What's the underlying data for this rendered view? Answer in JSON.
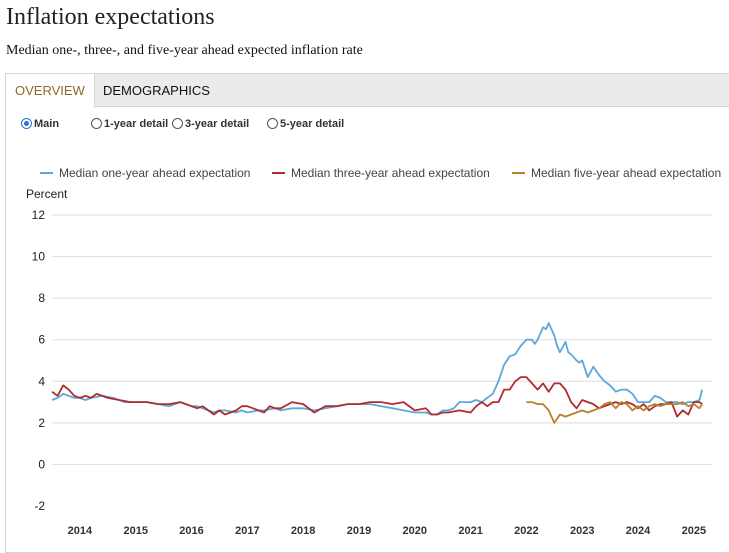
{
  "page": {
    "title": "Inflation expectations",
    "subtitle": "Median one-, three-, and five-year ahead expected inflation rate"
  },
  "tabs": [
    {
      "label": "OVERVIEW",
      "active": true
    },
    {
      "label": "DEMOGRAPHICS",
      "active": false
    }
  ],
  "radios": [
    {
      "label": "Main",
      "checked": true
    },
    {
      "label": "1-year detail",
      "checked": false
    },
    {
      "label": "3-year detail",
      "checked": false
    },
    {
      "label": "5-year detail",
      "checked": false
    }
  ],
  "chart_data": {
    "type": "line",
    "title": "Inflation expectations",
    "subtitle": "Median one-, three-, and five-year ahead expected inflation rate",
    "ylabel": "Percent",
    "xlabel": "",
    "ylim": [
      -2,
      12
    ],
    "xlim": [
      2013.5,
      2025.2
    ],
    "yticks": [
      12,
      10,
      8,
      6,
      4,
      2,
      0,
      -2
    ],
    "xticks": [
      2014,
      2015,
      2016,
      2017,
      2018,
      2019,
      2020,
      2021,
      2022,
      2023,
      2024,
      2025
    ],
    "grid": "horizontal",
    "legend_position": "top",
    "series": [
      {
        "name": "Median one-year ahead expectation",
        "color": "#5aa9dc",
        "x": [
          2013.5,
          2013.6,
          2013.7,
          2013.8,
          2013.9,
          2014.0,
          2014.1,
          2014.2,
          2014.4,
          2014.6,
          2014.8,
          2015.0,
          2015.2,
          2015.4,
          2015.6,
          2015.8,
          2016.0,
          2016.1,
          2016.2,
          2016.4,
          2016.5,
          2016.6,
          2016.8,
          2016.9,
          2017.0,
          2017.2,
          2017.3,
          2017.5,
          2017.6,
          2017.8,
          2018.0,
          2018.2,
          2018.4,
          2018.6,
          2018.8,
          2019.0,
          2019.2,
          2019.4,
          2019.6,
          2019.8,
          2020.0,
          2020.2,
          2020.3,
          2020.4,
          2020.5,
          2020.6,
          2020.7,
          2020.8,
          2021.0,
          2021.1,
          2021.2,
          2021.3,
          2021.4,
          2021.5,
          2021.6,
          2021.7,
          2021.8,
          2021.9,
          2022.0,
          2022.1,
          2022.15,
          2022.2,
          2022.3,
          2022.35,
          2022.4,
          2022.5,
          2022.55,
          2022.6,
          2022.7,
          2022.75,
          2022.8,
          2022.9,
          2022.95,
          2023.0,
          2023.05,
          2023.1,
          2023.2,
          2023.3,
          2023.4,
          2023.5,
          2023.6,
          2023.7,
          2023.8,
          2023.9,
          2024.0,
          2024.1,
          2024.2,
          2024.3,
          2024.4,
          2024.5,
          2024.6,
          2024.7,
          2024.8,
          2024.9,
          2025.0,
          2025.1,
          2025.15
        ],
        "values": [
          3.1,
          3.2,
          3.4,
          3.3,
          3.2,
          3.2,
          3.1,
          3.2,
          3.3,
          3.2,
          3.0,
          3.0,
          3.0,
          2.9,
          2.8,
          3.0,
          2.8,
          2.8,
          2.7,
          2.5,
          2.6,
          2.6,
          2.5,
          2.6,
          2.5,
          2.6,
          2.6,
          2.7,
          2.6,
          2.7,
          2.7,
          2.6,
          2.7,
          2.8,
          2.9,
          2.9,
          2.9,
          2.8,
          2.7,
          2.6,
          2.5,
          2.5,
          2.4,
          2.4,
          2.6,
          2.6,
          2.7,
          3.0,
          3.0,
          3.1,
          3.0,
          3.2,
          3.4,
          4.0,
          4.8,
          5.2,
          5.3,
          5.7,
          6.0,
          6.0,
          5.8,
          6.0,
          6.6,
          6.5,
          6.8,
          6.2,
          5.7,
          5.4,
          5.9,
          5.4,
          5.3,
          5.0,
          4.9,
          5.0,
          4.6,
          4.2,
          4.7,
          4.3,
          4.0,
          3.8,
          3.5,
          3.6,
          3.6,
          3.4,
          3.0,
          3.0,
          3.0,
          3.3,
          3.2,
          3.0,
          3.0,
          3.0,
          2.9,
          3.0,
          3.0,
          3.1,
          3.6
        ]
      },
      {
        "name": "Median three-year ahead expectation",
        "color": "#b22b2f",
        "x": [
          2013.5,
          2013.6,
          2013.7,
          2013.8,
          2013.9,
          2014.0,
          2014.1,
          2014.2,
          2014.3,
          2014.5,
          2014.7,
          2014.9,
          2015.0,
          2015.2,
          2015.4,
          2015.6,
          2015.8,
          2016.0,
          2016.1,
          2016.2,
          2016.3,
          2016.4,
          2016.5,
          2016.6,
          2016.8,
          2016.9,
          2017.0,
          2017.2,
          2017.3,
          2017.4,
          2017.5,
          2017.6,
          2017.8,
          2018.0,
          2018.2,
          2018.4,
          2018.6,
          2018.8,
          2019.0,
          2019.2,
          2019.4,
          2019.6,
          2019.8,
          2020.0,
          2020.2,
          2020.3,
          2020.4,
          2020.5,
          2020.6,
          2020.8,
          2021.0,
          2021.1,
          2021.2,
          2021.3,
          2021.4,
          2021.5,
          2021.6,
          2021.7,
          2021.8,
          2021.9,
          2022.0,
          2022.1,
          2022.2,
          2022.3,
          2022.4,
          2022.5,
          2022.6,
          2022.7,
          2022.8,
          2022.9,
          2023.0,
          2023.1,
          2023.2,
          2023.3,
          2023.4,
          2023.5,
          2023.6,
          2023.7,
          2023.8,
          2023.9,
          2024.0,
          2024.1,
          2024.2,
          2024.3,
          2024.4,
          2024.5,
          2024.6,
          2024.7,
          2024.8,
          2024.9,
          2025.0,
          2025.1,
          2025.15
        ],
        "values": [
          3.5,
          3.3,
          3.8,
          3.6,
          3.3,
          3.2,
          3.3,
          3.2,
          3.4,
          3.2,
          3.1,
          3.0,
          3.0,
          3.0,
          2.9,
          2.9,
          3.0,
          2.8,
          2.7,
          2.8,
          2.6,
          2.4,
          2.6,
          2.4,
          2.6,
          2.8,
          2.8,
          2.6,
          2.5,
          2.8,
          2.7,
          2.7,
          3.0,
          2.9,
          2.5,
          2.8,
          2.8,
          2.9,
          2.9,
          3.0,
          3.0,
          2.9,
          3.0,
          2.6,
          2.7,
          2.4,
          2.4,
          2.5,
          2.5,
          2.6,
          2.5,
          2.8,
          3.0,
          2.8,
          3.0,
          3.0,
          3.6,
          3.6,
          4.0,
          4.2,
          4.2,
          3.9,
          3.6,
          3.9,
          3.5,
          3.9,
          3.9,
          3.6,
          3.0,
          2.7,
          3.1,
          3.0,
          2.9,
          2.7,
          2.8,
          2.9,
          3.0,
          2.9,
          3.0,
          2.9,
          2.7,
          2.9,
          2.6,
          2.8,
          2.9,
          2.9,
          3.0,
          2.3,
          2.6,
          2.4,
          3.0,
          3.0,
          2.9
        ]
      },
      {
        "name": "Median five-year ahead expectation",
        "color": "#b8822a",
        "x": [
          2022.0,
          2022.1,
          2022.2,
          2022.3,
          2022.4,
          2022.5,
          2022.6,
          2022.7,
          2022.8,
          2022.9,
          2023.0,
          2023.1,
          2023.2,
          2023.3,
          2023.4,
          2023.5,
          2023.6,
          2023.7,
          2023.8,
          2023.9,
          2024.0,
          2024.1,
          2024.2,
          2024.3,
          2024.4,
          2024.5,
          2024.6,
          2024.7,
          2024.8,
          2024.9,
          2025.0,
          2025.1,
          2025.15
        ],
        "values": [
          3.0,
          3.0,
          2.9,
          2.9,
          2.6,
          2.0,
          2.4,
          2.3,
          2.4,
          2.5,
          2.6,
          2.5,
          2.6,
          2.7,
          2.9,
          3.0,
          2.7,
          3.0,
          2.9,
          2.6,
          2.8,
          2.6,
          2.8,
          2.9,
          2.8,
          2.9,
          2.9,
          2.9,
          3.0,
          2.8,
          2.9,
          2.7,
          2.9
        ]
      }
    ]
  }
}
